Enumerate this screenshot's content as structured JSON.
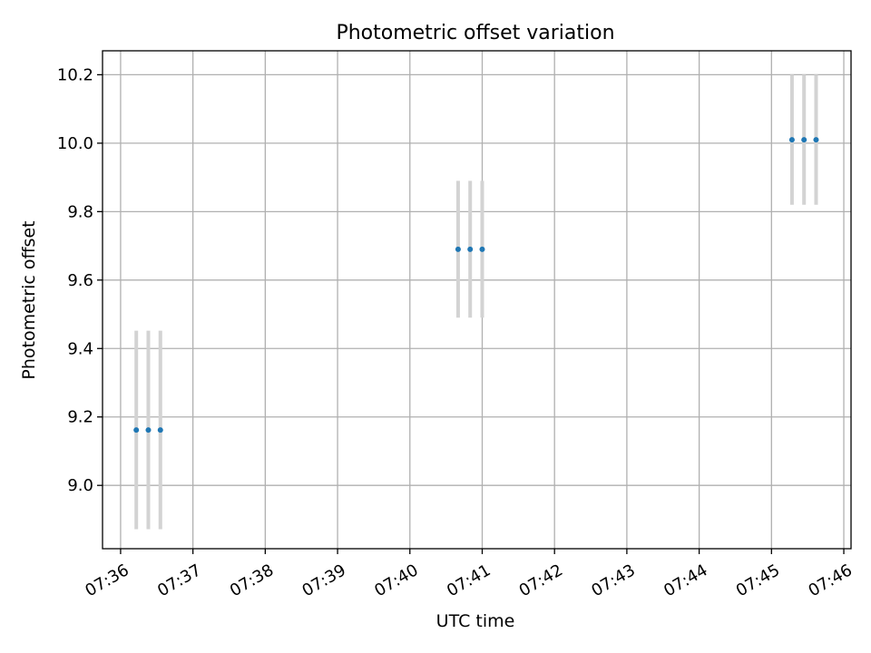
{
  "chart_data": {
    "type": "scatter",
    "title": "Photometric offset variation",
    "xlabel": "UTC time",
    "ylabel": "Photometric offset",
    "x_tick_labels": [
      "07:36",
      "07:37",
      "07:38",
      "07:39",
      "07:40",
      "07:41",
      "07:42",
      "07:43",
      "07:44",
      "07:45",
      "07:46"
    ],
    "y_ticks": [
      9.0,
      9.2,
      9.4,
      9.6,
      9.8,
      10.0,
      10.2
    ],
    "y_tick_labels": [
      "9.0",
      "9.2",
      "9.4",
      "9.6",
      "9.8",
      "10.0",
      "10.2"
    ],
    "xlim": [
      "07:35:45",
      "07:46:06"
    ],
    "ylim": [
      8.815,
      10.27
    ],
    "grid": true,
    "point_color": "#1f77b4",
    "errorbar_color": "#d3d3d3",
    "points": [
      {
        "x": "07:36:13",
        "y": 9.162,
        "err": 0.29
      },
      {
        "x": "07:36:23",
        "y": 9.162,
        "err": 0.29
      },
      {
        "x": "07:36:33",
        "y": 9.162,
        "err": 0.29
      },
      {
        "x": "07:40:40",
        "y": 9.69,
        "err": 0.2
      },
      {
        "x": "07:40:50",
        "y": 9.69,
        "err": 0.2
      },
      {
        "x": "07:41:00",
        "y": 9.69,
        "err": 0.2
      },
      {
        "x": "07:45:17",
        "y": 10.01,
        "err": 0.19
      },
      {
        "x": "07:45:27",
        "y": 10.01,
        "err": 0.19
      },
      {
        "x": "07:45:37",
        "y": 10.01,
        "err": 0.19
      }
    ]
  }
}
